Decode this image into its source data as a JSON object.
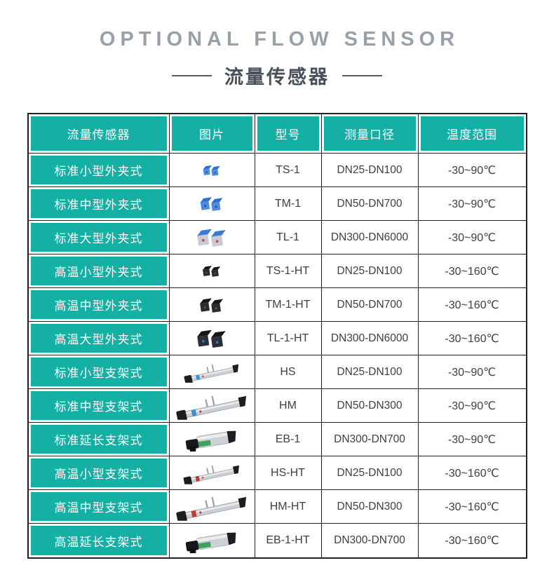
{
  "header": {
    "title": "OPTIONAL FLOW SENSOR",
    "subtitle": "流量传感器"
  },
  "table": {
    "columns": [
      "流量传感器",
      "图片",
      "型号",
      "测量口径",
      "温度范围"
    ],
    "rows": [
      {
        "name": "标准小型外夹式",
        "image": "blue-clamp-small",
        "model": "TS-1",
        "diameter": "DN25-DN100",
        "temp": "-30~90℃"
      },
      {
        "name": "标准中型外夹式",
        "image": "blue-clamp-medium",
        "model": "TM-1",
        "diameter": "DN50-DN700",
        "temp": "-30~90℃"
      },
      {
        "name": "标准大型外夹式",
        "image": "blue-clamp-large",
        "model": "TL-1",
        "diameter": "DN300-DN6000",
        "temp": "-30~90℃"
      },
      {
        "name": "高温小型外夹式",
        "image": "black-clamp-small",
        "model": "TS-1-HT",
        "diameter": "DN25-DN100",
        "temp": "-30~160℃"
      },
      {
        "name": "高温中型外夹式",
        "image": "black-clamp-medium",
        "model": "TM-1-HT",
        "diameter": "DN50-DN700",
        "temp": "-30~160℃"
      },
      {
        "name": "高温大型外夹式",
        "image": "black-clamp-large",
        "model": "TL-1-HT",
        "diameter": "DN300-DN6000",
        "temp": "-30~160℃"
      },
      {
        "name": "标准小型支架式",
        "image": "bracket-rail-small",
        "model": "HS",
        "diameter": "DN25-DN100",
        "temp": "-30~90℃"
      },
      {
        "name": "标准中型支架式",
        "image": "bracket-rail-medium",
        "model": "HM",
        "diameter": "DN50-DN300",
        "temp": "-30~90℃"
      },
      {
        "name": "标准延长支架式",
        "image": "bracket-cylinder",
        "model": "EB-1",
        "diameter": "DN300-DN700",
        "temp": "-30~90℃"
      },
      {
        "name": "高温小型支架式",
        "image": "bracket-rail-small-ht",
        "model": "HS-HT",
        "diameter": "DN25-DN100",
        "temp": "-30~160℃"
      },
      {
        "name": "高温中型支架式",
        "image": "bracket-rail-medium-ht",
        "model": "HM-HT",
        "diameter": "DN50-DN300",
        "temp": "-30~160℃"
      },
      {
        "name": "高温延长支架式",
        "image": "bracket-cylinder-ht",
        "model": "EB-1-HT",
        "diameter": "DN300-DN700",
        "temp": "-30~160℃"
      }
    ]
  },
  "colors": {
    "accent": "#14b0a6",
    "grid": "#1f2126",
    "title_gray": "#9aa0a8",
    "subtitle_gray": "#4a5059",
    "body_text": "#3a4049"
  }
}
